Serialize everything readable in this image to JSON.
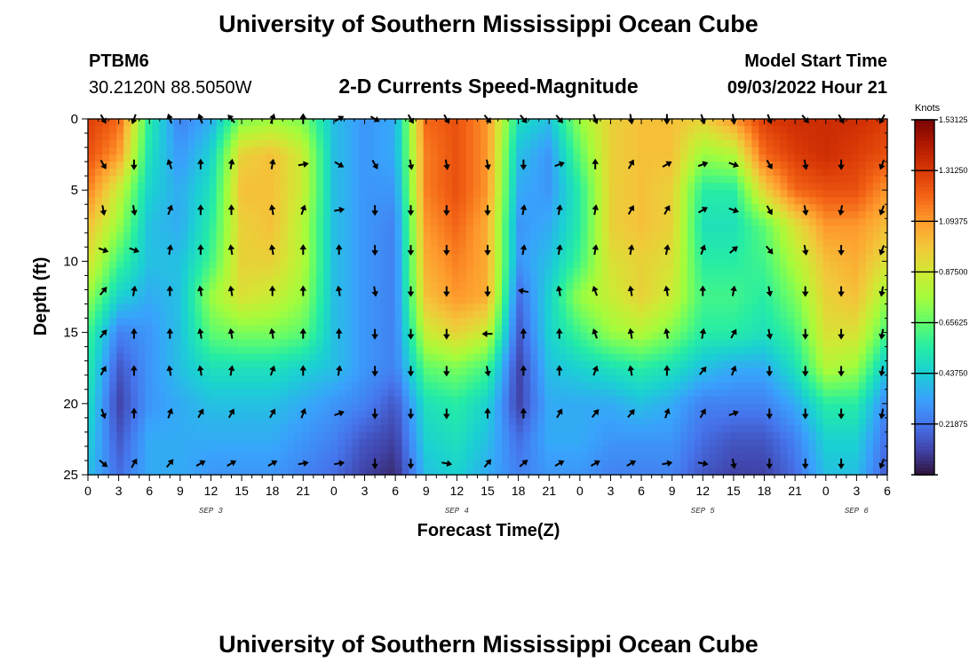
{
  "page": {
    "title_top": "University of Southern Mississippi Ocean Cube",
    "title_bottom": "University of Southern Mississippi Ocean Cube",
    "station": "PTBM6",
    "location": "30.2120N  88.5050W",
    "subtitle": "2-D Currents Speed-Magnitude",
    "model_start_label": "Model Start Time",
    "model_start_value": "09/03/2022 Hour 21"
  },
  "chart_data": {
    "type": "heatmap",
    "title": "2-D Currents Speed-Magnitude",
    "xlabel": "Forecast Time(Z)",
    "ylabel": "Depth (ft)",
    "x_hours_range": [
      0,
      78
    ],
    "ylim": [
      0,
      25
    ],
    "x_ticks": [
      {
        "h": 0,
        "label": "0"
      },
      {
        "h": 3,
        "label": "3"
      },
      {
        "h": 6,
        "label": "6"
      },
      {
        "h": 9,
        "label": "9"
      },
      {
        "h": 12,
        "label": "12"
      },
      {
        "h": 15,
        "label": "15"
      },
      {
        "h": 18,
        "label": "18"
      },
      {
        "h": 21,
        "label": "21"
      },
      {
        "h": 24,
        "label": "0"
      },
      {
        "h": 27,
        "label": "3"
      },
      {
        "h": 30,
        "label": "6"
      },
      {
        "h": 33,
        "label": "9"
      },
      {
        "h": 36,
        "label": "12"
      },
      {
        "h": 39,
        "label": "15"
      },
      {
        "h": 42,
        "label": "18"
      },
      {
        "h": 45,
        "label": "21"
      },
      {
        "h": 48,
        "label": "0"
      },
      {
        "h": 51,
        "label": "3"
      },
      {
        "h": 54,
        "label": "6"
      },
      {
        "h": 57,
        "label": "9"
      },
      {
        "h": 60,
        "label": "12"
      },
      {
        "h": 63,
        "label": "15"
      },
      {
        "h": 66,
        "label": "18"
      },
      {
        "h": 69,
        "label": "21"
      },
      {
        "h": 72,
        "label": "0"
      },
      {
        "h": 75,
        "label": "3"
      },
      {
        "h": 78,
        "label": "6"
      }
    ],
    "y_ticks": [
      "0",
      "5",
      "10",
      "15",
      "20",
      "25"
    ],
    "y_tick_values": [
      0,
      5,
      10,
      15,
      20,
      25
    ],
    "date_labels": [
      {
        "h": 12,
        "label": "SEP 3"
      },
      {
        "h": 36,
        "label": "SEP 4"
      },
      {
        "h": 60,
        "label": "SEP 5"
      },
      {
        "h": 75,
        "label": "SEP 6"
      }
    ],
    "colorbar": {
      "title": "Knots",
      "min": 0,
      "max": 1.53125,
      "ticks": [
        "1.53125",
        "1.31250",
        "1.09375",
        "0.87500",
        "0.65625",
        "0.43750",
        "0.21875"
      ],
      "tick_values": [
        1.53125,
        1.3125,
        1.09375,
        0.875,
        0.65625,
        0.4375,
        0.21875
      ],
      "colors": [
        "#30123b",
        "#4145ab",
        "#4675ed",
        "#39a2fc",
        "#1bcfd4",
        "#24eca6",
        "#61fc6c",
        "#a4fc3b",
        "#d1e834",
        "#f3c63a",
        "#fe9b2d",
        "#f36315",
        "#d93806",
        "#b11901",
        "#7a0402"
      ]
    },
    "time_points_hours": [
      0,
      3,
      6,
      9,
      12,
      15,
      18,
      21,
      24,
      27,
      30,
      33,
      36,
      39,
      42,
      45,
      48,
      51,
      54,
      57,
      60,
      63,
      66,
      69,
      72,
      75,
      78
    ],
    "depth_points_ft": [
      0,
      2.5,
      5,
      7.5,
      10,
      12.5,
      15,
      17.5,
      20,
      22.5,
      25
    ],
    "speed_knots": [
      [
        1.3,
        1.2,
        0.55,
        0.25,
        0.35,
        0.7,
        0.75,
        0.7,
        0.4,
        0.3,
        0.35,
        1.2,
        1.25,
        1.1,
        0.5,
        0.4,
        0.75,
        0.95,
        1.0,
        1.0,
        0.95,
        1.1,
        1.3,
        1.35,
        1.35,
        1.35,
        1.3
      ],
      [
        1.25,
        1.1,
        0.5,
        0.3,
        0.45,
        0.95,
        1.0,
        0.85,
        0.4,
        0.3,
        0.35,
        1.15,
        1.25,
        1.1,
        0.4,
        0.3,
        0.65,
        0.95,
        1.0,
        1.0,
        0.75,
        0.8,
        1.2,
        1.3,
        1.35,
        1.3,
        1.25
      ],
      [
        1.15,
        0.85,
        0.45,
        0.35,
        0.5,
        1.0,
        1.0,
        0.85,
        0.4,
        0.3,
        0.3,
        1.15,
        1.25,
        1.1,
        0.35,
        0.3,
        0.55,
        0.95,
        1.0,
        0.95,
        0.55,
        0.55,
        0.95,
        1.2,
        1.25,
        1.25,
        1.1
      ],
      [
        1.0,
        0.75,
        0.4,
        0.35,
        0.55,
        0.95,
        1.0,
        0.8,
        0.4,
        0.3,
        0.25,
        1.1,
        1.2,
        1.05,
        0.3,
        0.35,
        0.55,
        0.95,
        1.0,
        0.95,
        0.5,
        0.5,
        0.65,
        0.9,
        1.1,
        1.1,
        1.0
      ],
      [
        0.9,
        0.6,
        0.4,
        0.4,
        0.6,
        0.95,
        0.95,
        0.8,
        0.4,
        0.3,
        0.25,
        1.05,
        1.15,
        1.05,
        0.3,
        0.4,
        0.6,
        0.9,
        0.95,
        0.9,
        0.55,
        0.55,
        0.6,
        0.8,
        1.0,
        1.05,
        0.9
      ],
      [
        0.75,
        0.45,
        0.35,
        0.4,
        0.75,
        0.9,
        0.85,
        0.75,
        0.4,
        0.3,
        0.25,
        1.0,
        1.1,
        1.05,
        0.2,
        0.45,
        0.75,
        0.85,
        0.95,
        0.85,
        0.6,
        0.6,
        0.55,
        0.7,
        0.95,
        1.0,
        0.75
      ],
      [
        0.6,
        0.25,
        0.3,
        0.4,
        0.65,
        0.7,
        0.7,
        0.65,
        0.4,
        0.3,
        0.25,
        0.85,
        0.95,
        0.85,
        0.15,
        0.45,
        0.6,
        0.75,
        0.8,
        0.7,
        0.55,
        0.55,
        0.5,
        0.6,
        0.9,
        0.9,
        0.6
      ],
      [
        0.55,
        0.15,
        0.3,
        0.4,
        0.5,
        0.5,
        0.5,
        0.45,
        0.4,
        0.3,
        0.25,
        0.65,
        0.7,
        0.6,
        0.1,
        0.4,
        0.45,
        0.5,
        0.55,
        0.5,
        0.4,
        0.35,
        0.35,
        0.5,
        0.8,
        0.75,
        0.4
      ],
      [
        0.5,
        0.1,
        0.3,
        0.35,
        0.4,
        0.4,
        0.4,
        0.35,
        0.3,
        0.25,
        0.15,
        0.5,
        0.55,
        0.45,
        0.1,
        0.35,
        0.35,
        0.35,
        0.4,
        0.35,
        0.25,
        0.25,
        0.25,
        0.35,
        0.55,
        0.55,
        0.25
      ],
      [
        0.45,
        0.15,
        0.35,
        0.35,
        0.35,
        0.35,
        0.35,
        0.3,
        0.25,
        0.15,
        0.1,
        0.45,
        0.5,
        0.4,
        0.2,
        0.35,
        0.35,
        0.3,
        0.3,
        0.3,
        0.2,
        0.15,
        0.15,
        0.25,
        0.45,
        0.45,
        0.2
      ],
      [
        0.4,
        0.2,
        0.35,
        0.35,
        0.3,
        0.3,
        0.3,
        0.25,
        0.2,
        0.1,
        0.05,
        0.4,
        0.45,
        0.35,
        0.25,
        0.3,
        0.3,
        0.25,
        0.25,
        0.25,
        0.15,
        0.1,
        0.1,
        0.2,
        0.4,
        0.4,
        0.15
      ]
    ],
    "vector_hours": [
      1.5,
      4.5,
      8,
      11,
      14,
      18,
      21,
      24.5,
      28,
      31.5,
      35,
      39,
      42.5,
      46,
      49.5,
      53,
      56.5,
      60,
      63,
      66.5,
      70,
      73.5,
      77.5
    ],
    "vector_depths_ft": [
      0,
      3.2,
      6.4,
      9.2,
      12.1,
      15.1,
      17.7,
      20.7,
      24.2
    ],
    "vector_directions_deg": [
      [
        150,
        200,
        340,
        340,
        320,
        20,
        0,
        60,
        120,
        150,
        150,
        140,
        140,
        140,
        160,
        170,
        180,
        160,
        170,
        160,
        140,
        150,
        210
      ],
      [
        150,
        180,
        340,
        0,
        10,
        10,
        80,
        120,
        150,
        170,
        170,
        170,
        180,
        70,
        0,
        30,
        60,
        70,
        110,
        150,
        170,
        180,
        200
      ],
      [
        170,
        170,
        20,
        0,
        0,
        350,
        20,
        80,
        180,
        180,
        180,
        180,
        10,
        10,
        10,
        30,
        30,
        60,
        110,
        150,
        170,
        190,
        200
      ],
      [
        110,
        110,
        10,
        0,
        350,
        350,
        0,
        0,
        180,
        180,
        180,
        180,
        10,
        10,
        10,
        10,
        10,
        20,
        50,
        140,
        170,
        180,
        200
      ],
      [
        40,
        10,
        0,
        350,
        350,
        0,
        0,
        350,
        170,
        180,
        180,
        180,
        280,
        350,
        340,
        350,
        350,
        0,
        10,
        170,
        180,
        180,
        190
      ],
      [
        40,
        0,
        0,
        350,
        350,
        350,
        0,
        0,
        180,
        180,
        180,
        270,
        0,
        0,
        340,
        350,
        350,
        10,
        30,
        170,
        180,
        180,
        190
      ],
      [
        30,
        0,
        350,
        350,
        10,
        20,
        0,
        10,
        180,
        180,
        180,
        170,
        0,
        0,
        20,
        350,
        0,
        40,
        20,
        180,
        180,
        180,
        190
      ],
      [
        160,
        0,
        20,
        30,
        30,
        30,
        20,
        70,
        180,
        180,
        180,
        0,
        0,
        30,
        40,
        40,
        20,
        30,
        70,
        180,
        180,
        180,
        190
      ],
      [
        130,
        30,
        40,
        60,
        60,
        60,
        80,
        80,
        180,
        180,
        100,
        40,
        50,
        60,
        60,
        60,
        80,
        100,
        170,
        180,
        180,
        180,
        200
      ]
    ]
  }
}
